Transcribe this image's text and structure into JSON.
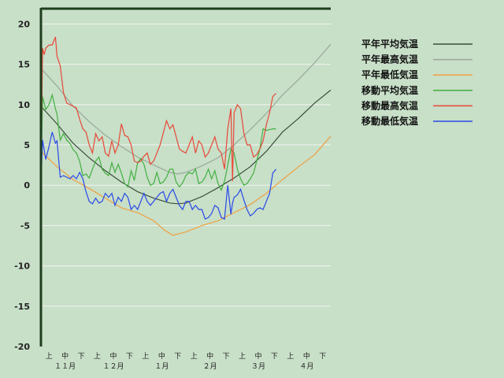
{
  "chart_data": {
    "type": "line",
    "ylim": [
      -20,
      22
    ],
    "yticks": [
      "20",
      "15",
      "10",
      "5",
      "0",
      "-5",
      "-10",
      "-15",
      "-20"
    ],
    "grid": true,
    "legend_position": "right",
    "x_period_labels": [
      "上",
      "中",
      "下",
      "上",
      "中",
      "下",
      "上",
      "中",
      "下",
      "上",
      "中",
      "下",
      "上",
      "中",
      "下",
      "上",
      "中",
      "下"
    ],
    "x_month_labels": [
      "１１月",
      "１２月",
      "１月",
      "２月",
      "３月",
      "４月"
    ],
    "x_day_range": [
      0,
      180
    ],
    "series": [
      {
        "name": "平年平均気温",
        "color": "#3c4e3c",
        "x": [
          0,
          10,
          20,
          30,
          40,
          50,
          60,
          70,
          80,
          85,
          90,
          100,
          110,
          120,
          130,
          140,
          150,
          160,
          170,
          180
        ],
        "values": [
          9.8,
          7.6,
          5.2,
          3.4,
          1.8,
          0.4,
          -0.8,
          -1.6,
          -2.2,
          -2.3,
          -2.2,
          -1.4,
          -0.3,
          0.9,
          2.3,
          4.2,
          6.6,
          8.3,
          10.2,
          11.8
        ]
      },
      {
        "name": "平年最高気温",
        "color": "#9aa89a",
        "x": [
          0,
          10,
          20,
          30,
          40,
          50,
          60,
          70,
          80,
          85,
          90,
          100,
          110,
          120,
          130,
          140,
          150,
          160,
          170,
          180
        ],
        "values": [
          14.5,
          12.3,
          9.8,
          7.9,
          6.2,
          4.8,
          3.5,
          2.5,
          1.6,
          1.4,
          1.6,
          2.4,
          3.4,
          5.0,
          6.9,
          8.9,
          11.2,
          13.1,
          15.2,
          17.5
        ]
      },
      {
        "name": "平年最低気温",
        "color": "#f0a040",
        "x": [
          0,
          10,
          20,
          30,
          40,
          50,
          60,
          70,
          77,
          82,
          90,
          100,
          110,
          120,
          130,
          140,
          150,
          160,
          170,
          180
        ],
        "values": [
          4.2,
          2.3,
          0.7,
          -0.4,
          -1.6,
          -2.8,
          -3.4,
          -4.4,
          -5.6,
          -6.2,
          -5.8,
          -5.0,
          -4.4,
          -3.4,
          -2.4,
          -1.0,
          0.7,
          2.3,
          3.8,
          6.1
        ]
      },
      {
        "name": "移動平均気温",
        "color": "#40b040",
        "x": [
          0,
          1,
          3,
          5,
          7,
          9,
          10,
          12,
          14,
          16,
          18,
          20,
          22,
          24,
          26,
          28,
          30,
          32,
          34,
          36,
          38,
          40,
          42,
          44,
          46,
          48,
          50,
          52,
          54,
          56,
          58,
          60,
          62,
          64,
          66,
          68,
          70,
          72,
          74,
          76,
          78,
          80,
          82,
          84,
          86,
          88,
          90,
          92,
          94,
          96,
          98,
          100,
          102,
          104,
          106,
          108,
          110,
          112,
          114,
          116,
          118,
          120,
          122,
          124,
          126,
          128,
          130,
          132,
          134,
          136,
          138,
          140,
          142,
          144,
          146
        ],
        "values": [
          0,
          11,
          9.4,
          10,
          11.2,
          9.5,
          8.8,
          5.6,
          6.4,
          5.6,
          5.2,
          4.4,
          4.0,
          3.0,
          1.2,
          1.4,
          0.9,
          2.0,
          3.0,
          3.5,
          2.0,
          1.5,
          1.2,
          2.8,
          1.6,
          2.6,
          1.5,
          0.2,
          -0.2,
          1.8,
          0.6,
          2.8,
          3.3,
          2.6,
          1.0,
          0.0,
          0.2,
          1.6,
          0.2,
          0.4,
          1.0,
          2.0,
          2.0,
          0.4,
          -0.2,
          0.3,
          1.2,
          1.6,
          1.4,
          2.0,
          0.2,
          0.4,
          1.0,
          2.0,
          0.8,
          1.8,
          0.2,
          -0.6,
          0.5,
          2.5,
          4.5,
          4.0,
          2.0,
          0.8,
          0.0,
          0.2,
          0.8,
          1.5,
          3.0,
          4.5,
          7.0,
          6.8,
          6.9,
          7.0,
          7.0
        ]
      },
      {
        "name": "移動最高気温",
        "color": "#e84838",
        "x": [
          0,
          1,
          2,
          3,
          5,
          7,
          9,
          10,
          12,
          14,
          16,
          18,
          20,
          22,
          24,
          26,
          28,
          30,
          32,
          34,
          36,
          38,
          40,
          42,
          44,
          46,
          48,
          50,
          52,
          54,
          56,
          58,
          60,
          62,
          64,
          66,
          68,
          70,
          72,
          74,
          76,
          78,
          80,
          82,
          84,
          86,
          88,
          90,
          92,
          94,
          96,
          98,
          100,
          102,
          104,
          106,
          108,
          110,
          112,
          114,
          116,
          118,
          119,
          120,
          122,
          124,
          126,
          128,
          130,
          132,
          134,
          136,
          138,
          140,
          142,
          144,
          146
        ],
        "values": [
          0,
          17,
          16.2,
          17,
          17.4,
          17.4,
          18.4,
          16,
          14.8,
          11.5,
          10.2,
          10.0,
          9.8,
          9.6,
          8.2,
          7.0,
          6.6,
          5.0,
          4.0,
          6.4,
          5.5,
          6.0,
          4.0,
          3.6,
          5.5,
          4.0,
          5.0,
          7.6,
          6.2,
          6.0,
          5.0,
          3.0,
          2.8,
          3.0,
          3.6,
          4.0,
          2.6,
          3.0,
          4.0,
          5.0,
          6.5,
          8.0,
          7.0,
          7.5,
          6.0,
          4.5,
          4.2,
          4.0,
          5.0,
          6.0,
          4.0,
          5.5,
          5.0,
          3.5,
          4.0,
          5.0,
          6.0,
          4.5,
          4.0,
          2.0,
          7.0,
          9.5,
          0.5,
          9.0,
          10.0,
          9.5,
          6.5,
          5.0,
          5.0,
          3.5,
          3.8,
          4.5,
          5.5,
          7.5,
          9.0,
          11.0,
          11.4
        ]
      },
      {
        "name": "移動最低気温",
        "color": "#2848e8",
        "x": [
          0,
          1,
          2,
          3,
          5,
          7,
          9,
          10,
          12,
          14,
          16,
          18,
          20,
          22,
          24,
          26,
          28,
          30,
          32,
          34,
          36,
          38,
          40,
          42,
          44,
          46,
          48,
          50,
          52,
          54,
          56,
          58,
          60,
          62,
          64,
          66,
          68,
          70,
          72,
          74,
          76,
          78,
          80,
          82,
          84,
          86,
          88,
          90,
          92,
          94,
          96,
          98,
          100,
          102,
          104,
          106,
          108,
          110,
          112,
          114,
          116,
          118,
          119,
          120,
          122,
          124,
          126,
          128,
          130,
          132,
          134,
          136,
          138,
          140,
          142,
          144,
          146
        ],
        "values": [
          0,
          5.6,
          4.4,
          3.2,
          4.8,
          6.6,
          5.2,
          5.5,
          1.0,
          1.2,
          1.0,
          0.8,
          1.2,
          0.8,
          1.6,
          0.8,
          -0.8,
          -2.0,
          -2.3,
          -1.6,
          -2.2,
          -2.0,
          -1.0,
          -1.5,
          -1.0,
          -2.5,
          -1.5,
          -2.0,
          -1.0,
          -1.5,
          -3.0,
          -2.5,
          -3.0,
          -2.0,
          -1.0,
          -2.0,
          -2.5,
          -2.0,
          -1.5,
          -1.0,
          -0.8,
          -2.0,
          -1.0,
          -0.5,
          -1.5,
          -2.5,
          -3.0,
          -2.0,
          -2.0,
          -3.0,
          -2.5,
          -3.0,
          -3.0,
          -4.2,
          -4.0,
          -3.5,
          -2.5,
          -2.8,
          -4.0,
          -4.2,
          0.0,
          -3.6,
          -2.2,
          -1.5,
          -1.2,
          -0.5,
          -1.8,
          -3.0,
          -3.8,
          -3.5,
          -3.0,
          -2.8,
          -3.0,
          -2.0,
          -1.0,
          1.5,
          2.0
        ]
      }
    ]
  }
}
